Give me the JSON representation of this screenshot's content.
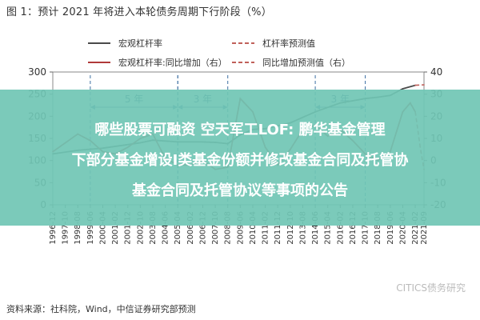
{
  "figure": {
    "title": "图 1：预计 2021 年将进入本轮债务周期下行阶段（%）",
    "source": "资料来源：社科院，Wind，中信证券研究部预测",
    "watermark": "CITICS债务研究"
  },
  "overlay": {
    "line1": "哪些股票可融资 空天军工LOF: 鹏华基金管理",
    "line2": "下部分基金增设I类基金份额并修改基金合同及托管协",
    "line3": "基金合同及托管协议等事项的公告",
    "color": "#70c6b4"
  },
  "chart_data": {
    "type": "line",
    "legend": [
      {
        "name": "宏观杠杆率",
        "color": "#4a4a4a",
        "style": "solid"
      },
      {
        "name": "杠杆率预测值",
        "color": "#c0605a",
        "style": "dashed"
      },
      {
        "name": "宏观杠杆率:同比增加（右）",
        "color": "#b03a3a",
        "style": "solid"
      },
      {
        "name": "同比增加预测值（右）",
        "color": "#c0605a",
        "style": "dashed"
      }
    ],
    "x_labels": [
      "1996-12",
      "1997-10",
      "1998-08",
      "1999-06",
      "2000-04",
      "2001-02",
      "2001-12",
      "2002-10",
      "2003-08",
      "2004-06",
      "2005-04",
      "2006-02",
      "2006-12",
      "2007-10",
      "2008-08",
      "2009-06",
      "2010-04",
      "2011-02",
      "2011-12",
      "2012-10",
      "2013-08",
      "2014-06",
      "2015-04",
      "2016-02",
      "2016-12",
      "2017-10",
      "2018-08",
      "2019-06",
      "2020-04",
      "2021-02",
      "2021-09"
    ],
    "y_left": {
      "min": 0,
      "max": 300,
      "ticks": [
        0,
        50,
        100,
        150,
        200,
        250,
        300
      ]
    },
    "y_right": {
      "min": -20,
      "max": 40,
      "ticks": [
        -20,
        -10,
        0,
        10,
        20,
        30,
        40
      ]
    },
    "annotations": [
      {
        "label": "5 年",
        "from": "1999-06",
        "to": "2005-04"
      },
      {
        "label": "3 年",
        "from": "2005-04",
        "to": "2008-08"
      },
      {
        "label": "3 年",
        "from": "2014-06",
        "to": "2017-10"
      }
    ],
    "series": [
      {
        "name": "宏观杠杆率",
        "axis": "left",
        "points": [
          [
            "1996-12",
            115
          ],
          [
            "1998-08",
            123
          ],
          [
            "2000-04",
            128
          ],
          [
            "2002-10",
            140
          ],
          [
            "2003-08",
            146
          ],
          [
            "2005-04",
            142
          ],
          [
            "2006-12",
            142
          ],
          [
            "2007-10",
            141
          ],
          [
            "2008-08",
            138
          ],
          [
            "2009-06",
            158
          ],
          [
            "2010-04",
            170
          ],
          [
            "2011-02",
            172
          ],
          [
            "2012-10",
            185
          ],
          [
            "2014-06",
            210
          ],
          [
            "2016-02",
            230
          ],
          [
            "2017-10",
            240
          ],
          [
            "2018-08",
            243
          ],
          [
            "2019-06",
            247
          ],
          [
            "2020-04",
            262
          ],
          [
            "2021-02",
            270
          ]
        ]
      },
      {
        "name": "杠杆率预测值",
        "axis": "left",
        "points": [
          [
            "2021-02",
            270
          ],
          [
            "2021-09",
            271
          ]
        ]
      },
      {
        "name": "宏观杠杆率:同比增加（右）",
        "axis": "right",
        "points": [
          [
            "1996-12",
            4
          ],
          [
            "1998-08",
            12
          ],
          [
            "1999-06",
            9
          ],
          [
            "2000-04",
            4
          ],
          [
            "2001-02",
            3
          ],
          [
            "2001-12",
            6
          ],
          [
            "2002-10",
            10
          ],
          [
            "2003-08",
            12
          ],
          [
            "2004-06",
            1
          ],
          [
            "2005-04",
            -2
          ],
          [
            "2006-02",
            -2
          ],
          [
            "2006-12",
            0
          ],
          [
            "2007-10",
            -4
          ],
          [
            "2008-08",
            -3
          ],
          [
            "2009-06",
            28
          ],
          [
            "2010-04",
            22
          ],
          [
            "2011-02",
            6
          ],
          [
            "2011-12",
            -2
          ],
          [
            "2012-10",
            5
          ],
          [
            "2013-08",
            14
          ],
          [
            "2014-06",
            16
          ],
          [
            "2015-04",
            11
          ],
          [
            "2016-02",
            14
          ],
          [
            "2016-12",
            9
          ],
          [
            "2017-10",
            3
          ],
          [
            "2018-08",
            0
          ],
          [
            "2019-06",
            4
          ],
          [
            "2020-04",
            22
          ],
          [
            "2020-10",
            26
          ],
          [
            "2021-02",
            22
          ]
        ]
      },
      {
        "name": "同比增加预测值（右）",
        "axis": "right",
        "points": [
          [
            "2021-02",
            22
          ],
          [
            "2021-06",
            6
          ],
          [
            "2021-09",
            -4
          ]
        ]
      }
    ]
  }
}
